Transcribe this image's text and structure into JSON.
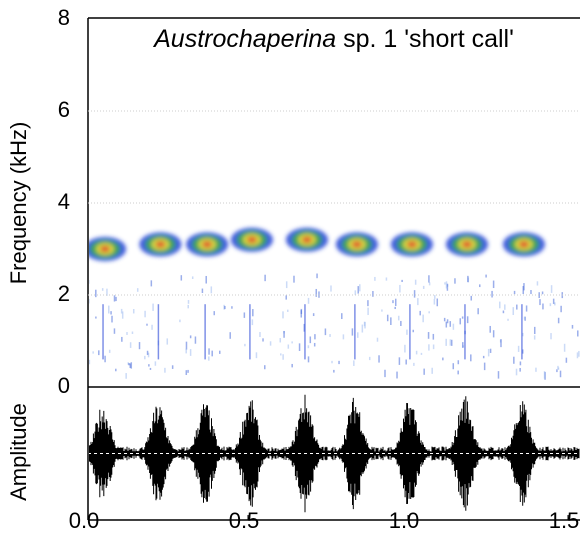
{
  "chart_data": {
    "type": "spectrogram",
    "title": [
      "Austrochaperina",
      "sp. 1 'short call'"
    ],
    "ylabel": "Frequency (kHz)",
    "y2label": "Amplitude",
    "xlim": [
      0,
      1.54
    ],
    "xticks": [
      {
        "value": 0,
        "label": "0.0"
      },
      {
        "value": 0.5,
        "label": "0.5"
      },
      {
        "value": 1.0,
        "label": "1.0"
      },
      {
        "value": 1.5,
        "label": "1.5"
      }
    ],
    "ylim": [
      0,
      8
    ],
    "yticks": [
      0,
      2,
      4,
      6,
      8
    ],
    "y2lim": [
      -1,
      1
    ],
    "grid": true,
    "calls": {
      "times": [
        0.047,
        0.22,
        0.366,
        0.506,
        0.678,
        0.834,
        1.006,
        1.178,
        1.356
      ],
      "freq_khz": [
        3.0,
        3.1,
        3.1,
        3.2,
        3.2,
        3.1,
        3.1,
        3.1,
        3.1
      ],
      "amplitude": [
        0.5,
        0.55,
        0.6,
        0.7,
        0.8,
        0.75,
        0.7,
        0.8,
        0.6
      ]
    }
  }
}
